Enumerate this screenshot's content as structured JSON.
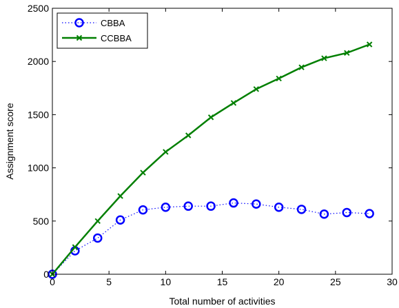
{
  "chart_data": {
    "type": "line",
    "xlabel": "Total number of activities",
    "ylabel": "Assignment score",
    "xlim": [
      0,
      30
    ],
    "ylim": [
      0,
      2500
    ],
    "xticks": [
      0,
      5,
      10,
      15,
      20,
      25,
      30
    ],
    "yticks": [
      0,
      500,
      1000,
      1500,
      2000,
      2500
    ],
    "grid": false,
    "legend_position": "top-left",
    "x": [
      0,
      2,
      4,
      6,
      8,
      10,
      12,
      14,
      16,
      18,
      20,
      22,
      24,
      26,
      28
    ],
    "series": [
      {
        "name": "CBBA",
        "color": "#0000ff",
        "line_style": "dotted",
        "marker": "circle",
        "values": [
          0,
          220,
          340,
          510,
          605,
          630,
          640,
          640,
          670,
          660,
          630,
          610,
          565,
          580,
          570
        ]
      },
      {
        "name": "CCBBA",
        "color": "#007f00",
        "line_style": "solid",
        "marker": "x",
        "values": [
          0,
          255,
          500,
          735,
          955,
          1150,
          1305,
          1475,
          1610,
          1740,
          1840,
          1945,
          2030,
          2080,
          2160
        ]
      }
    ]
  }
}
